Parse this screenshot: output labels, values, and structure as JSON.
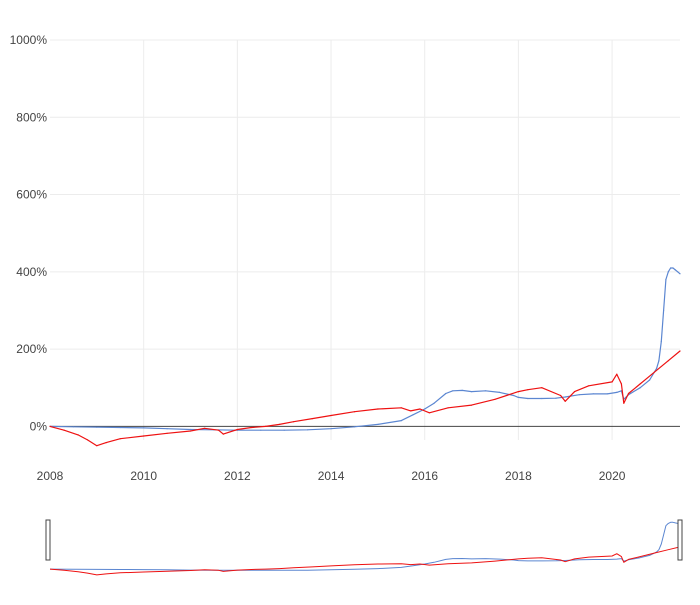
{
  "colors": {
    "background": "#ffffff",
    "grid": "#ececec",
    "zero_line": "#444444",
    "tick_text": "#444444",
    "series_blue": "#5b86d1",
    "series_red": "#ee1111",
    "navigator_handle": "#444444"
  },
  "chart_data": {
    "type": "line",
    "title": "",
    "xlabel": "",
    "ylabel": "",
    "x_unit": "year",
    "y_unit": "%",
    "xlim": [
      2008,
      2021.45
    ],
    "ylim": [
      -100,
      1000
    ],
    "grid": true,
    "legend": "none",
    "x_ticks": [
      {
        "value": 2008,
        "label": "2008"
      },
      {
        "value": 2010,
        "label": "2010"
      },
      {
        "value": 2012,
        "label": "2012"
      },
      {
        "value": 2014,
        "label": "2014"
      },
      {
        "value": 2016,
        "label": "2016"
      },
      {
        "value": 2018,
        "label": "2018"
      },
      {
        "value": 2020,
        "label": "2020"
      }
    ],
    "y_ticks": [
      {
        "value": 0,
        "label": "0%"
      },
      {
        "value": 200,
        "label": "200%"
      },
      {
        "value": 400,
        "label": "400%"
      },
      {
        "value": 600,
        "label": "600%"
      },
      {
        "value": 800,
        "label": "800%"
      },
      {
        "value": 1000,
        "label": "1000%"
      }
    ],
    "series": [
      {
        "color": "#5b86d1",
        "x": [
          2008.0,
          2008.5,
          2009.0,
          2009.5,
          2010.0,
          2010.5,
          2011.0,
          2011.5,
          2012.0,
          2012.5,
          2013.0,
          2013.5,
          2014.0,
          2014.5,
          2015.0,
          2015.5,
          2015.75,
          2016.0,
          2016.2,
          2016.45,
          2016.6,
          2016.8,
          2017.0,
          2017.3,
          2017.6,
          2017.9,
          2018.0,
          2018.2,
          2018.5,
          2018.8,
          2019.0,
          2019.3,
          2019.6,
          2019.9,
          2020.1,
          2020.2,
          2020.25,
          2020.35,
          2020.6,
          2020.8,
          2020.95,
          2021.0,
          2021.05,
          2021.1,
          2021.15,
          2021.2,
          2021.25,
          2021.3,
          2021.35,
          2021.4,
          2021.45
        ],
        "y": [
          0,
          -1,
          -2,
          -3,
          -4,
          -6,
          -8,
          -9,
          -10,
          -10,
          -10,
          -9,
          -6,
          -1,
          5,
          15,
          30,
          45,
          60,
          85,
          92,
          93,
          90,
          92,
          88,
          80,
          75,
          72,
          72,
          73,
          76,
          82,
          84,
          84,
          88,
          92,
          70,
          82,
          100,
          120,
          150,
          170,
          220,
          300,
          380,
          400,
          410,
          410,
          405,
          400,
          395
        ]
      },
      {
        "color": "#ee1111",
        "x": [
          2008.0,
          2008.3,
          2008.6,
          2008.8,
          2009.0,
          2009.2,
          2009.5,
          2010.0,
          2010.5,
          2011.0,
          2011.3,
          2011.6,
          2011.7,
          2012.0,
          2012.3,
          2012.6,
          2012.9,
          2013.2,
          2013.6,
          2014.0,
          2014.5,
          2015.0,
          2015.5,
          2015.7,
          2015.9,
          2016.1,
          2016.5,
          2017.0,
          2017.5,
          2018.0,
          2018.2,
          2018.5,
          2018.9,
          2019.0,
          2019.2,
          2019.5,
          2020.0,
          2020.1,
          2020.2,
          2020.25,
          2020.35,
          2020.6,
          2020.9,
          2021.2,
          2021.45
        ],
        "y": [
          0,
          -10,
          -22,
          -35,
          -50,
          -42,
          -32,
          -25,
          -18,
          -12,
          -5,
          -10,
          -20,
          -8,
          -3,
          0,
          5,
          12,
          20,
          28,
          38,
          45,
          48,
          40,
          45,
          35,
          48,
          55,
          70,
          90,
          95,
          100,
          80,
          65,
          90,
          105,
          115,
          135,
          110,
          60,
          85,
          110,
          140,
          170,
          195
        ]
      }
    ]
  }
}
